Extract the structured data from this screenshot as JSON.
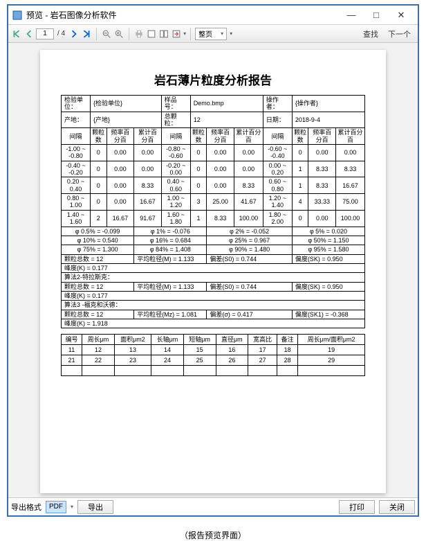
{
  "window": {
    "title": "预览 - 岩石图像分析软件",
    "min": "—",
    "max": "□",
    "close": "✕"
  },
  "toolbar": {
    "page_current": "1",
    "page_total": "/ 4",
    "zoom_combo": "整页",
    "find": "查找",
    "next": "下一个"
  },
  "report": {
    "title": "岩石薄片粒度分析报告",
    "header": {
      "c1": "检验单位：",
      "v1": "{检验单位}",
      "c2": "样品号：",
      "v2": "Demo.bmp",
      "c3": "操作者：",
      "v3": "{操作者}",
      "c4": "产地：",
      "v4": "{产地}",
      "c5": "总颗粒：",
      "v5": "12",
      "c6": "日期：",
      "v6": "2018-9-4"
    },
    "cols": {
      "a": "间隔",
      "b": "颗粒数",
      "c": "频率百分百",
      "d": "累计百分百"
    },
    "rows": [
      {
        "r1": "-1.00 ~ -0.80",
        "n1": "0",
        "f1": "0.00",
        "a1": "0.00",
        "r2": "-0.80 ~ -0.60",
        "n2": "0",
        "f2": "0.00",
        "a2": "0.00",
        "r3": "-0.60 ~ -0.40",
        "n3": "0",
        "f3": "0.00",
        "a3": "0.00"
      },
      {
        "r1": "-0.40 ~ -0.20",
        "n1": "0",
        "f1": "0.00",
        "a1": "0.00",
        "r2": "-0.20 ~ 0.00",
        "n2": "0",
        "f2": "0.00",
        "a2": "0.00",
        "r3": "0.00 ~ 0.20",
        "n3": "1",
        "f3": "8.33",
        "a3": "8.33"
      },
      {
        "r1": "0.20 ~ 0.40",
        "n1": "0",
        "f1": "0.00",
        "a1": "8.33",
        "r2": "0.40 ~ 0.60",
        "n2": "0",
        "f2": "0.00",
        "a2": "8.33",
        "r3": "0.60 ~ 0.80",
        "n3": "1",
        "f3": "8.33",
        "a3": "16.67"
      },
      {
        "r1": "0.80 ~ 1.00",
        "n1": "0",
        "f1": "0.00",
        "a1": "16.67",
        "r2": "1.00 ~ 1.20",
        "n2": "3",
        "f2": "25.00",
        "a2": "41.67",
        "r3": "1.20 ~ 1.40",
        "n3": "4",
        "f3": "33.33",
        "a3": "75.00"
      },
      {
        "r1": "1.40 ~ 1.60",
        "n1": "2",
        "f1": "16.67",
        "a1": "91.67",
        "r2": "1.60 ~ 1.80",
        "n2": "1",
        "f2": "8.33",
        "a2": "100.00",
        "r3": "1.80 ~ 2.00",
        "n3": "0",
        "f3": "0.00",
        "a3": "100.00"
      }
    ],
    "phi": [
      [
        "φ 0.5% = -0.099",
        "φ 1% = -0.076",
        "φ 2% = -0.052",
        "φ 5% = 0.020"
      ],
      [
        "φ 10% = 0.540",
        "φ 16% = 0.684",
        "φ 25% = 0.967",
        "φ 50% = 1.150"
      ],
      [
        "φ 75% = 1.300",
        "φ 84% = 1.408",
        "φ 90% = 1.480",
        "φ 95% = 1.580"
      ]
    ],
    "stats": [
      [
        "颗粒总数 = 12",
        "平均粒径(M) = 1.133",
        "偏差(S0) = 0.744",
        "偏度(SK) = 0.950"
      ],
      [
        "峰度(K) = 0.177",
        "",
        "",
        ""
      ]
    ],
    "method2": "算法2-特拉斯克：",
    "m2": [
      [
        "颗粒总数 = 12",
        "平均粒径(M) = 1.133",
        "偏差(S0) = 0.744",
        "偏度(SK) = 0.950"
      ],
      [
        "峰度(K) = 0.177",
        "",
        "",
        ""
      ]
    ],
    "method3": "算法3 -福克和沃德：",
    "m3": [
      [
        "颗粒总数 = 12",
        "平均粒径(Mz) = 1.081",
        "偏差(σ) = 0.417",
        "偏度(SK1) = -0.368"
      ],
      [
        "峰度(K) = 1.918",
        "",
        "",
        ""
      ]
    ],
    "sum_cols": [
      "编号",
      "周长μm",
      "面积μm2",
      "长轴μm",
      "短轴μm",
      "直径μm",
      "宽高比",
      "备注",
      "周长μm/面积μm2"
    ],
    "sum_rows": [
      [
        "11",
        "12",
        "13",
        "14",
        "15",
        "16",
        "17",
        "18",
        "19"
      ],
      [
        "21",
        "22",
        "23",
        "24",
        "25",
        "26",
        "27",
        "28",
        "29"
      ],
      [
        "",
        "",
        "",
        "",
        "",
        "",
        "",
        "",
        ""
      ]
    ]
  },
  "bottombar": {
    "label": "导出格式",
    "combo": "PDF",
    "export": "导出",
    "print": "打印",
    "close": "关闭"
  },
  "caption": "（报告预览界面）"
}
